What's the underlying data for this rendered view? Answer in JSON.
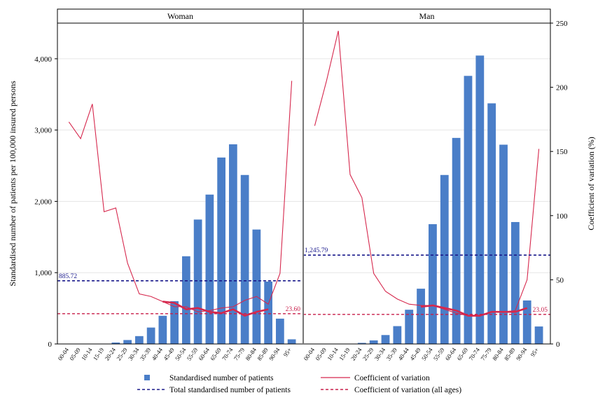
{
  "chart_data": {
    "type": "bar",
    "ylabel_left": "Standardised number of patients per 100,000 insured persons",
    "ylabel_right": "Coefficient of variation (%)",
    "ylim_left": [
      0,
      4500
    ],
    "ylim_right": [
      0,
      250
    ],
    "yticks_left": [
      "0",
      "1,000",
      "2,000",
      "3,000",
      "4,000"
    ],
    "yticks_right": [
      "0",
      "50",
      "100",
      "150",
      "200",
      "250"
    ],
    "categories": [
      "00-04",
      "05-09",
      "10-14",
      "15-19",
      "20-24",
      "25-29",
      "30-34",
      "35-39",
      "40-44",
      "45-49",
      "50-54",
      "55-59",
      "60-64",
      "65-69",
      "70-74",
      "75-79",
      "80-84",
      "85-89",
      "90-94",
      "95+"
    ],
    "panels": [
      {
        "name": "Woman",
        "bars": [
          0,
          0,
          0,
          5,
          20,
          55,
          110,
          230,
          395,
          600,
          1230,
          1745,
          2095,
          2615,
          2800,
          2370,
          1605,
          875,
          355,
          65
        ],
        "cv": [
          173,
          160,
          187,
          103,
          106,
          63,
          39,
          37,
          33,
          29,
          29,
          25,
          26,
          28,
          29,
          34,
          37,
          31,
          55,
          205
        ],
        "cv_highlight": {
          "start_index": 8,
          "values": [
            33,
            32,
            27,
            28,
            25,
            24,
            27,
            22,
            25,
            27
          ]
        },
        "total_value": 885.72,
        "total_label": "885.72",
        "cv_all_value": 23.6,
        "cv_all_label": "23.60"
      },
      {
        "name": "Man",
        "bars": [
          0,
          0,
          0,
          3,
          15,
          50,
          125,
          250,
          480,
          775,
          1680,
          2370,
          2890,
          3760,
          4045,
          3375,
          2795,
          1710,
          610,
          245
        ],
        "cv": [
          170,
          205,
          244,
          132,
          114,
          55,
          41,
          35,
          31,
          30,
          30,
          27,
          24,
          22,
          22,
          25,
          25,
          26,
          50,
          152
        ],
        "cv_highlight": {
          "start_index": 9,
          "values": [
            29,
            30,
            28,
            26,
            22,
            22,
            25,
            25,
            25,
            28
          ]
        },
        "total_value": 1245.79,
        "total_label": "1,245.79",
        "cv_all_value": 23.05,
        "cv_all_label": "23.05"
      }
    ],
    "legend": {
      "bars": "Standardised number of patients",
      "cv": "Coefficient of variation",
      "total": "Total standardised number of patients",
      "cv_all": "Coefficient of variation (all ages)"
    },
    "colors": {
      "bar": "#4a7ec8",
      "cv_line": "#d6284d",
      "cv_highlight": "#d6284d",
      "total_line": "#1a1a8c",
      "cv_all_line": "#c81e4a",
      "panel_border": "#000000",
      "grid": "#e6e6e6"
    },
    "grid": true,
    "legend_position": "bottom"
  }
}
